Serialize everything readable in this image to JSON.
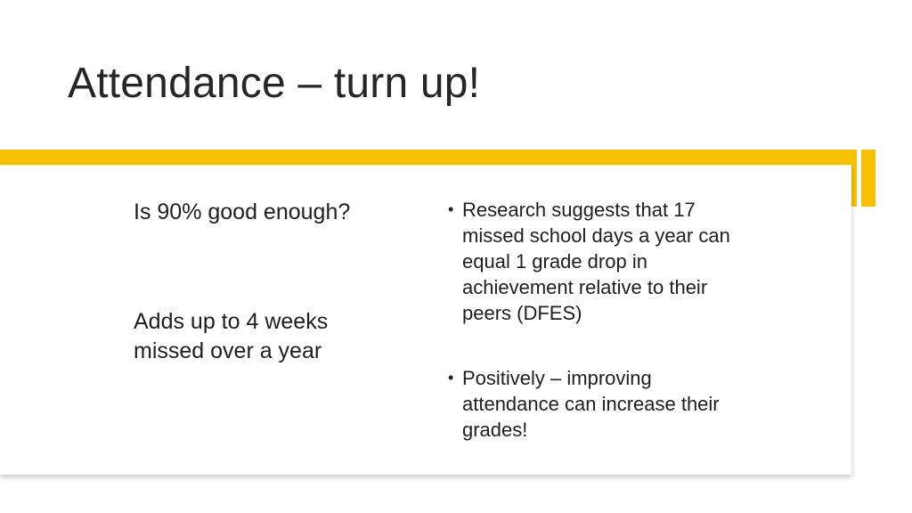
{
  "slide": {
    "title": "Attendance – turn up!",
    "left": {
      "question": "Is 90% good enough?",
      "answer": "Adds up to 4 weeks missed over a year"
    },
    "bullets": [
      "Research suggests that 17 missed school days a year can equal 1 grade drop in achievement relative to their peers (DFES)",
      "Positively – improving attendance can increase their grades!"
    ]
  },
  "colors": {
    "accent": "#f7c000",
    "text": "#202020",
    "background": "#ffffff"
  }
}
